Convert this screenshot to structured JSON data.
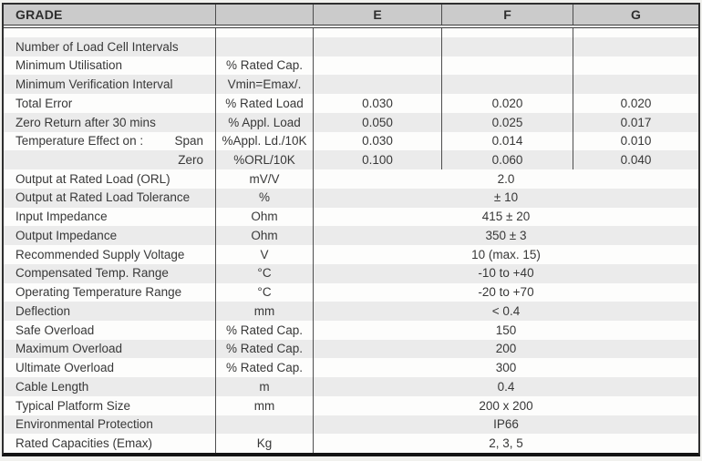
{
  "table": {
    "header": {
      "grade": "GRADE",
      "unit_col": "",
      "columns": [
        "E",
        "F",
        "G"
      ]
    },
    "rows": [
      {
        "type": "spacer",
        "param": "",
        "unit": "",
        "values": [
          "",
          "",
          ""
        ]
      },
      {
        "type": "split",
        "param": "Number of Load Cell Intervals",
        "unit": "",
        "values": [
          "",
          "",
          ""
        ]
      },
      {
        "type": "split",
        "param": "Minimum Utilisation",
        "unit": "% Rated Cap.",
        "values": [
          "",
          "",
          ""
        ]
      },
      {
        "type": "split",
        "param": "Minimum Verification Interval",
        "unit": "Vmin=Emax/.",
        "values": [
          "",
          "",
          ""
        ]
      },
      {
        "type": "split",
        "param": "Total Error",
        "unit": "% Rated Load",
        "values": [
          "0.030",
          "0.020",
          "0.020"
        ]
      },
      {
        "type": "split",
        "param": "Zero Return after 30 mins",
        "unit": "% Appl. Load",
        "values": [
          "0.050",
          "0.025",
          "0.017"
        ]
      },
      {
        "type": "split",
        "param": "Temperature Effect on :",
        "param_right": "Span",
        "unit": "%Appl. Ld./10K",
        "values": [
          "0.030",
          "0.014",
          "0.010"
        ]
      },
      {
        "type": "split",
        "param": "",
        "param_right": "Zero",
        "unit": "%ORL/10K",
        "values": [
          "0.100",
          "0.060",
          "0.040"
        ]
      },
      {
        "type": "span",
        "param": "Output at Rated Load (ORL)",
        "unit": "mV/V",
        "value": "2.0"
      },
      {
        "type": "span",
        "param": "Output at Rated Load Tolerance",
        "unit": "%",
        "value": "± 10"
      },
      {
        "type": "span",
        "param": "Input Impedance",
        "unit": "Ohm",
        "value": "415 ± 20"
      },
      {
        "type": "span",
        "param": "Output Impedance",
        "unit": "Ohm",
        "value": "350 ± 3"
      },
      {
        "type": "span",
        "param": "Recommended Supply Voltage",
        "unit": "V",
        "value": "10 (max. 15)"
      },
      {
        "type": "span",
        "param": "Compensated Temp. Range",
        "unit": "°C",
        "value": "-10 to +40"
      },
      {
        "type": "span",
        "param": "Operating Temperature Range",
        "unit": "°C",
        "value": "-20 to +70"
      },
      {
        "type": "span",
        "param": "Deflection",
        "unit": "mm",
        "value": "< 0.4"
      },
      {
        "type": "span",
        "param": "Safe Overload",
        "unit": "% Rated Cap.",
        "value": "150"
      },
      {
        "type": "span",
        "param": "Maximum Overload",
        "unit": "% Rated Cap.",
        "value": "200"
      },
      {
        "type": "span",
        "param": "Ultimate Overload",
        "unit": "% Rated Cap.",
        "value": "300"
      },
      {
        "type": "span",
        "param": "Cable Length",
        "unit": "m",
        "value": "0.4"
      },
      {
        "type": "span",
        "param": "Typical Platform Size",
        "unit": "mm",
        "value": "200 x 200"
      },
      {
        "type": "span",
        "param": "Environmental Protection",
        "unit": "",
        "value": "IP66"
      },
      {
        "type": "span",
        "param": "Rated Capacities (Emax)",
        "unit": "Kg",
        "value": "2, 3, 5"
      }
    ],
    "colors": {
      "header_bg": "#cbcbcb",
      "row_alt_bg": "#ebebeb",
      "frame_border": "#2f2f2f",
      "divider": "#4e4e4e",
      "text": "#383838",
      "page_bg": "#f1f1ee"
    }
  }
}
